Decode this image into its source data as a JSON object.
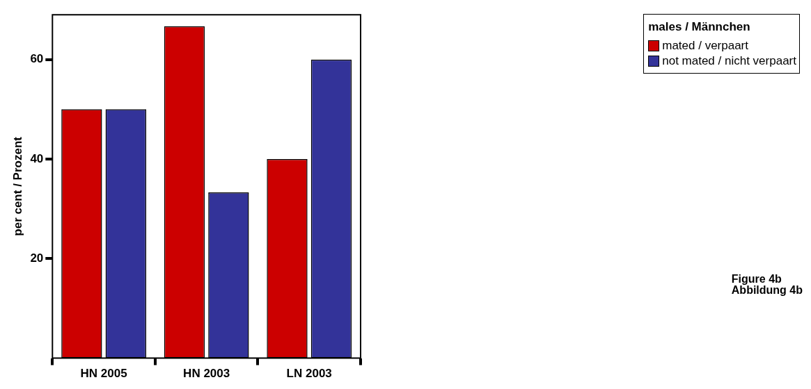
{
  "chart_data": {
    "type": "bar",
    "categories": [
      "HN 2005",
      "HN 2003",
      "LN 2003"
    ],
    "series": [
      {
        "name": "mated / verpaart",
        "color": "#cc0000",
        "values": [
          50,
          66.7,
          40
        ]
      },
      {
        "name": "not mated / nicht verpaart",
        "color": "#333399",
        "values": [
          50,
          33.3,
          60
        ]
      }
    ],
    "ylabel": "per cent / Prozent",
    "ylim": [
      0,
      69
    ],
    "yticks": [
      20,
      40,
      60
    ],
    "grid": false,
    "legend": "top right",
    "legend_title": "males / Männchen",
    "annotations": [
      "Figure 4b\nAbbildung 4b"
    ]
  }
}
